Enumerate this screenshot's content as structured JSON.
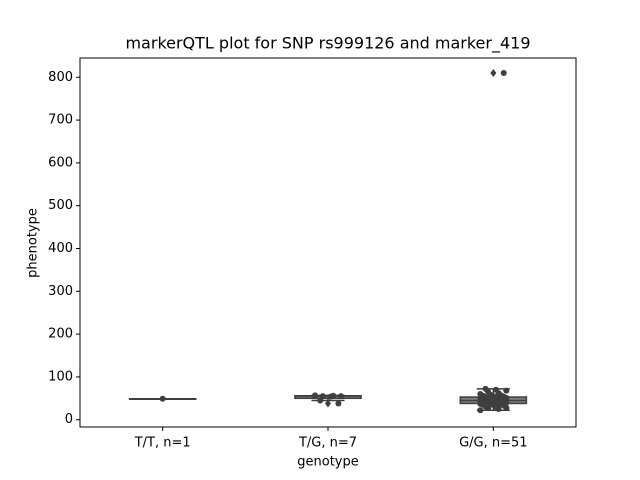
{
  "chart_data": {
    "type": "box",
    "title": "markerQTL plot for SNP rs999126 and marker_419",
    "xlabel": "genotype",
    "ylabel": "phenotype",
    "categories": [
      "T/T, n=1",
      "T/G, n=7",
      "G/G, n=51"
    ],
    "ylim": [
      -17,
      845
    ],
    "yticks": [
      0,
      100,
      200,
      300,
      400,
      500,
      600,
      700,
      800
    ],
    "color": "#3f3f3f",
    "boxes": [
      {
        "q1": 49,
        "median": 49,
        "q3": 49,
        "whislo": 49,
        "whishi": 49,
        "fliers": []
      },
      {
        "q1": 50,
        "median": 55,
        "q3": 56,
        "whislo": 45,
        "whishi": 57,
        "fliers": [
          38
        ]
      },
      {
        "q1": 38,
        "median": 45,
        "q3": 53,
        "whislo": 22,
        "whishi": 72,
        "fliers": [
          810
        ]
      }
    ],
    "points": [
      [
        49
      ],
      [
        57,
        56,
        55,
        55,
        54,
        45,
        38
      ],
      [
        22,
        25,
        27,
        28,
        30,
        31,
        33,
        34,
        35,
        36,
        37,
        37,
        38,
        39,
        40,
        40,
        41,
        42,
        42,
        43,
        43,
        44,
        44,
        44,
        45,
        45,
        46,
        46,
        47,
        47,
        48,
        48,
        49,
        49,
        50,
        50,
        51,
        52,
        53,
        54,
        55,
        56,
        57,
        58,
        60,
        62,
        65,
        68,
        70,
        72,
        810
      ]
    ]
  }
}
